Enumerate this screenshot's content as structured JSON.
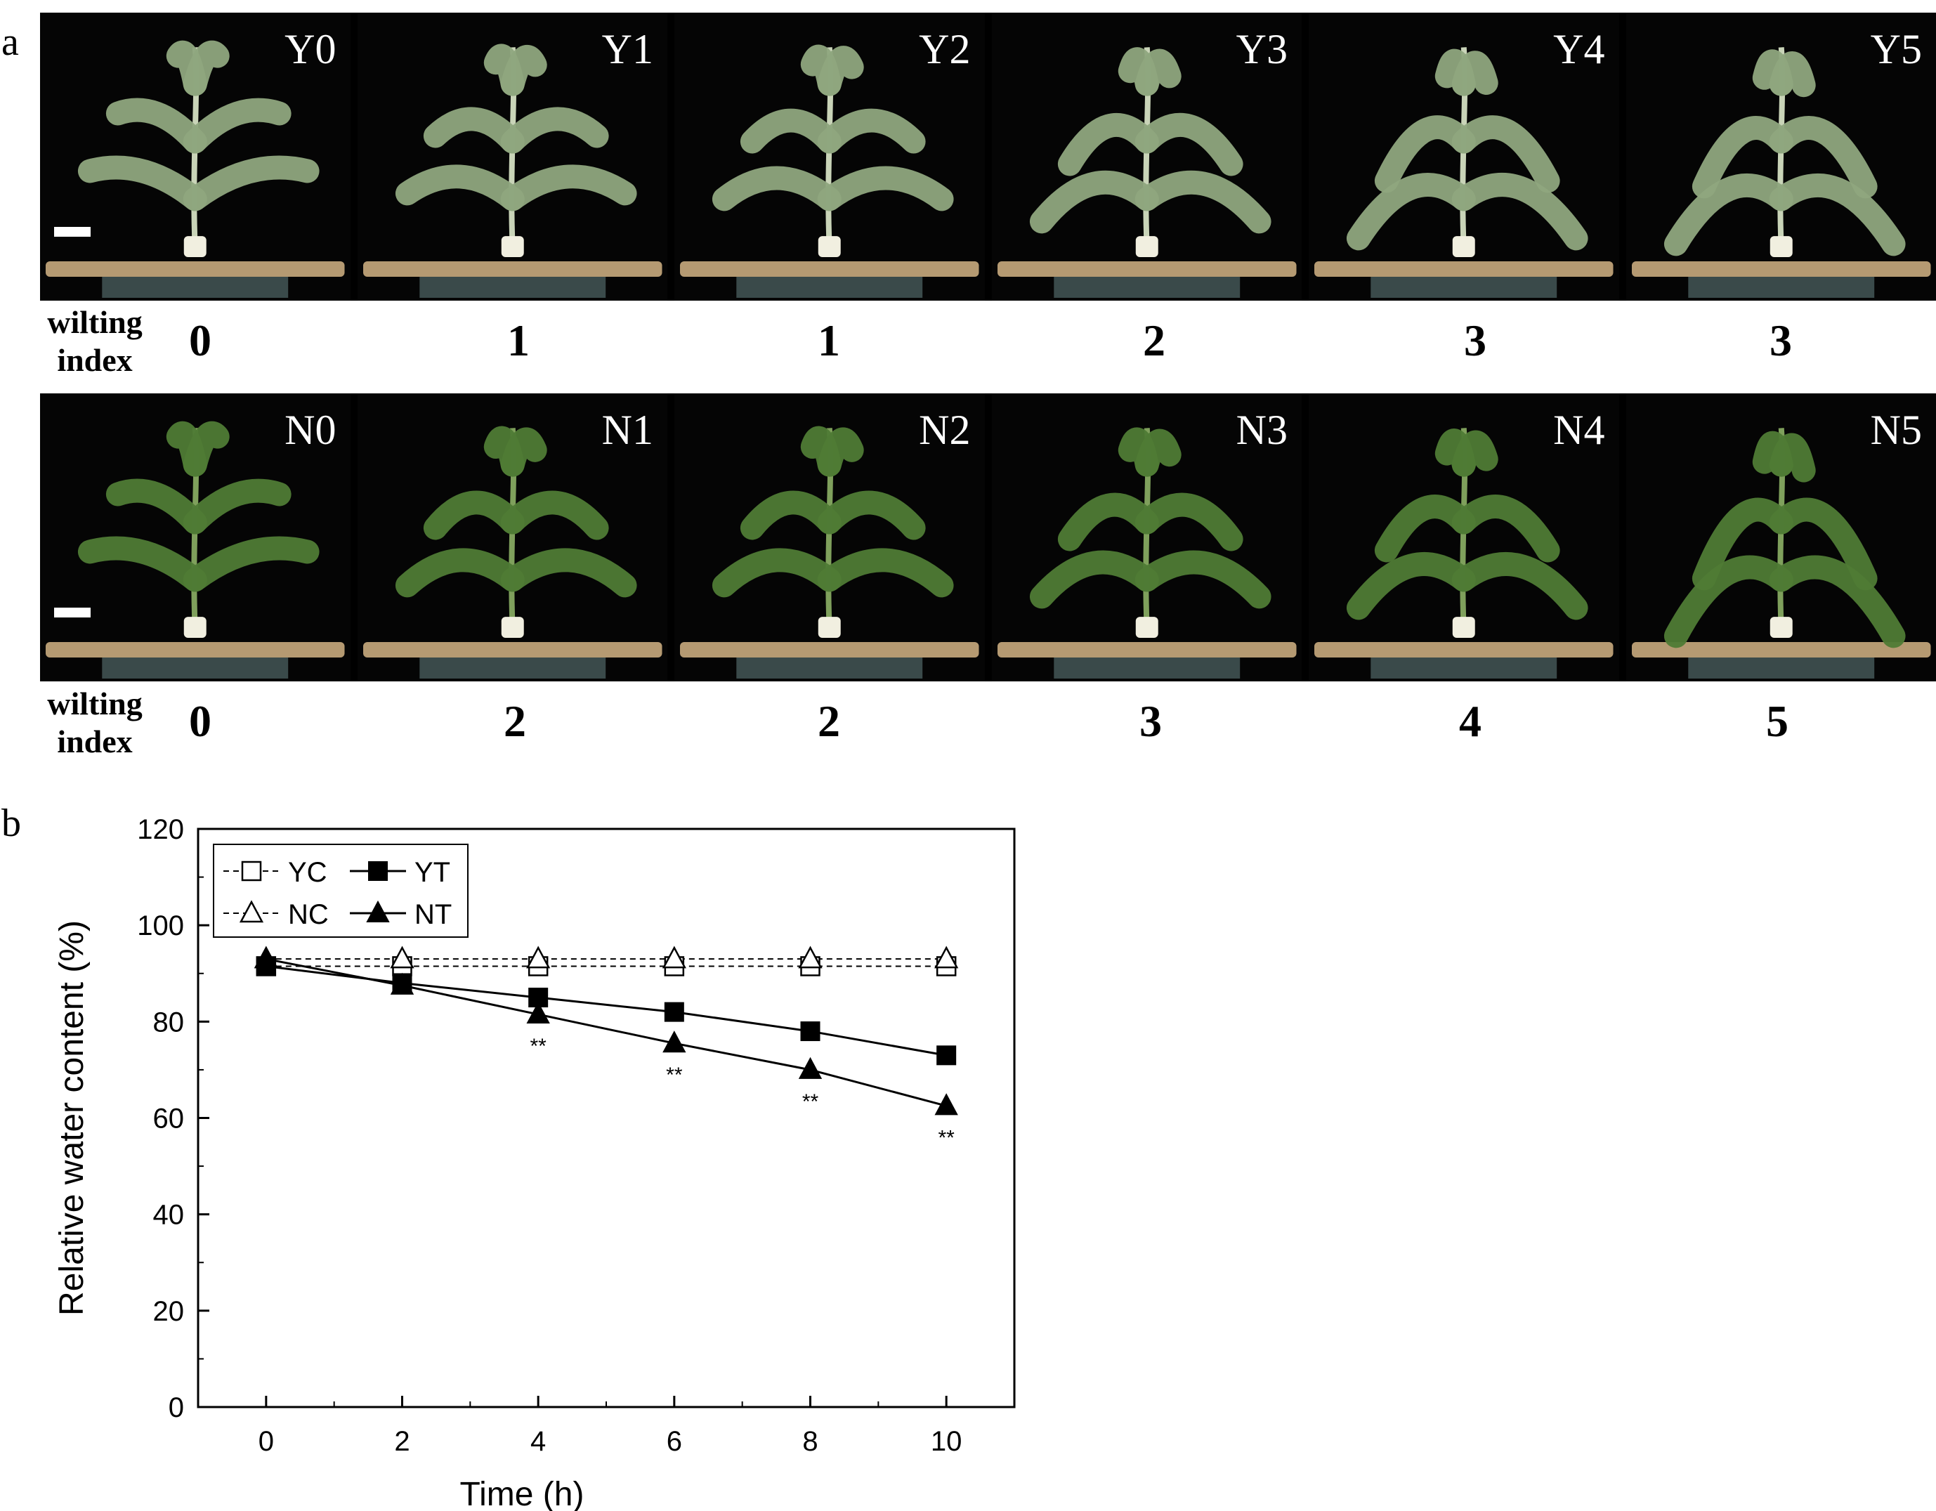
{
  "panels": {
    "a": "a",
    "b": "b"
  },
  "photo_strips": [
    {
      "labels": [
        "Y0",
        "Y1",
        "Y2",
        "Y3",
        "Y4",
        "Y5"
      ],
      "wilting_header": [
        "wilting",
        "index"
      ],
      "wilting_index": [
        "0",
        "1",
        "1",
        "2",
        "3",
        "3"
      ],
      "foliage_color": "#8fa77e",
      "stem_color": "#c9d4b8"
    },
    {
      "labels": [
        "N0",
        "N1",
        "N2",
        "N3",
        "N4",
        "N5"
      ],
      "wilting_header": [
        "wilting",
        "index"
      ],
      "wilting_index": [
        "0",
        "2",
        "2",
        "3",
        "4",
        "5"
      ],
      "foliage_color": "#4f7b35",
      "stem_color": "#7fa05c"
    }
  ],
  "chart_data": {
    "type": "line",
    "xlabel": "Time (h)",
    "ylabel": "Relative water content (%)",
    "x": [
      0,
      2,
      4,
      6,
      8,
      10
    ],
    "xlim": [
      -1,
      11
    ],
    "ylim": [
      0,
      120
    ],
    "xticks": [
      0,
      2,
      4,
      6,
      8,
      10
    ],
    "yticks": [
      0,
      20,
      40,
      60,
      80,
      100,
      120
    ],
    "grid": false,
    "legend_position": "top-left",
    "series": [
      {
        "name": "YC",
        "values": [
          91.5,
          91.5,
          91.5,
          91.5,
          91.5,
          91.5
        ],
        "marker": "open-square",
        "line": "dashed"
      },
      {
        "name": "YT",
        "values": [
          91.5,
          88.0,
          85.0,
          82.0,
          78.0,
          73.0
        ],
        "marker": "filled-square",
        "line": "solid"
      },
      {
        "name": "NC",
        "values": [
          93.0,
          93.0,
          93.0,
          93.0,
          93.0,
          93.0
        ],
        "marker": "open-triangle",
        "line": "dashed"
      },
      {
        "name": "NT",
        "values": [
          93.0,
          87.5,
          81.5,
          75.5,
          70.0,
          62.5
        ],
        "marker": "filled-triangle",
        "line": "solid"
      }
    ],
    "annotations": [
      {
        "x": 4,
        "y": 81.5,
        "text": "**"
      },
      {
        "x": 6,
        "y": 75.5,
        "text": "**"
      },
      {
        "x": 8,
        "y": 70.0,
        "text": "**"
      },
      {
        "x": 10,
        "y": 62.5,
        "text": "**"
      }
    ]
  }
}
